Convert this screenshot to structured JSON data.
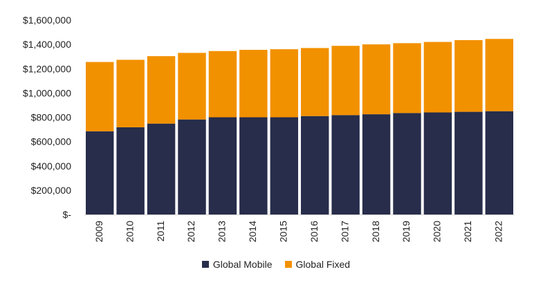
{
  "chart_data": {
    "type": "bar",
    "stacked": true,
    "categories": [
      "2009",
      "2010",
      "2011",
      "2012",
      "2013",
      "2014",
      "2015",
      "2016",
      "2017",
      "2018",
      "2019",
      "2020",
      "2021",
      "2022"
    ],
    "series": [
      {
        "name": "Global Mobile",
        "color": "#272D4A",
        "values": [
          685000,
          718000,
          748000,
          782000,
          800000,
          800000,
          800000,
          810000,
          818000,
          825000,
          835000,
          840000,
          845000,
          850000
        ]
      },
      {
        "name": "Global Fixed",
        "color": "#F29100",
        "values": [
          570000,
          555000,
          555000,
          548000,
          545000,
          555000,
          560000,
          560000,
          570000,
          575000,
          575000,
          580000,
          590000,
          595000
        ]
      }
    ],
    "yticks": [
      "$-",
      "$200,000",
      "$400,000",
      "$600,000",
      "$800,000",
      "$1,000,000",
      "$1,200,000",
      "$1,400,000",
      "$1,600,000"
    ],
    "ylim": [
      0,
      1600000
    ],
    "title": "",
    "xlabel": "",
    "ylabel": "",
    "grid": false,
    "legend_position": "bottom"
  }
}
